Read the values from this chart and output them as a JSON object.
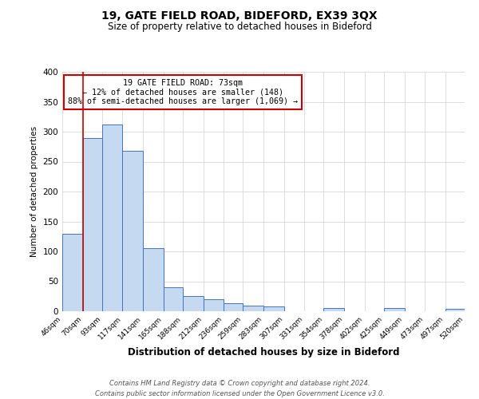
{
  "title": "19, GATE FIELD ROAD, BIDEFORD, EX39 3QX",
  "subtitle": "Size of property relative to detached houses in Bideford",
  "xlabel": "Distribution of detached houses by size in Bideford",
  "ylabel": "Number of detached properties",
  "bin_labels": [
    "46sqm",
    "70sqm",
    "93sqm",
    "117sqm",
    "141sqm",
    "165sqm",
    "188sqm",
    "212sqm",
    "236sqm",
    "259sqm",
    "283sqm",
    "307sqm",
    "331sqm",
    "354sqm",
    "378sqm",
    "402sqm",
    "425sqm",
    "449sqm",
    "473sqm",
    "497sqm",
    "520sqm"
  ],
  "bar_values": [
    130,
    290,
    312,
    268,
    106,
    40,
    25,
    20,
    13,
    10,
    8,
    0,
    0,
    5,
    0,
    0,
    5,
    0,
    0,
    4,
    0
  ],
  "bar_color": "#c5d9f1",
  "bar_edge_color": "#4472c4",
  "property_line_x": 70,
  "property_line_color": "#cc0000",
  "annotation_text": "19 GATE FIELD ROAD: 73sqm\n← 12% of detached houses are smaller (148)\n88% of semi-detached houses are larger (1,069) →",
  "annotation_box_color": "#cc0000",
  "ylim": [
    0,
    400
  ],
  "yticks": [
    0,
    50,
    100,
    150,
    200,
    250,
    300,
    350,
    400
  ],
  "footer_text": "Contains HM Land Registry data © Crown copyright and database right 2024.\nContains public sector information licensed under the Open Government Licence v3.0.",
  "bg_color": "#ffffff",
  "grid_color": "#d0d0d0"
}
